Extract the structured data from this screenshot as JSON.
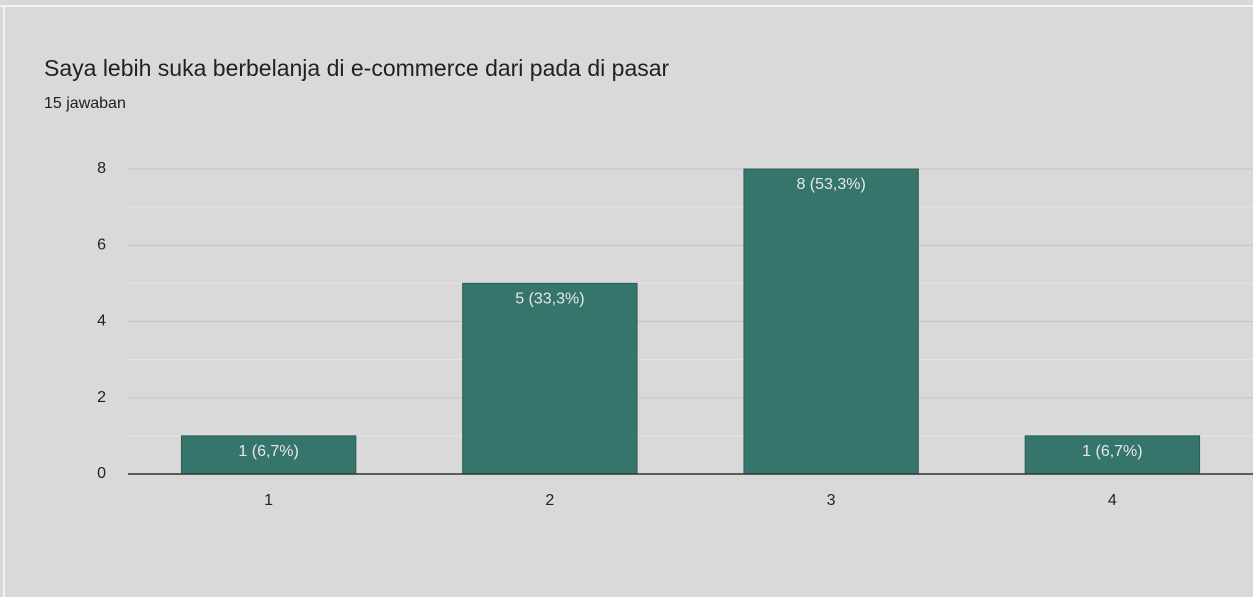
{
  "chart_data": {
    "type": "bar",
    "title": "Saya lebih suka berbelanja di e-commerce dari pada di pasar",
    "subtitle": "15 jawaban",
    "categories": [
      "1",
      "2",
      "3",
      "4"
    ],
    "values": [
      1,
      5,
      8,
      1
    ],
    "value_labels": [
      "1 (6,7%)",
      "5 (33,3%)",
      "8 (53,3%)",
      "1 (6,7%)"
    ],
    "color": "#35756b",
    "ylim": [
      0,
      8
    ],
    "yticks": [
      0,
      2,
      4,
      6,
      8
    ],
    "yminorticks": [
      1,
      3,
      5,
      7
    ],
    "grid": true
  }
}
